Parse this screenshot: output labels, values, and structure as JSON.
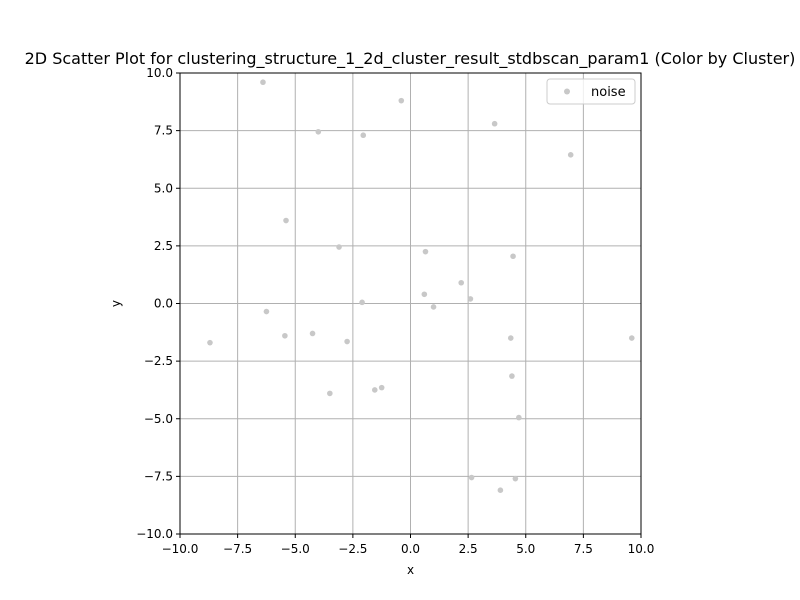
{
  "chart_data": {
    "type": "scatter",
    "title": "2D Scatter Plot for clustering_structure_1_2d_cluster_result_stdbscan_param1 (Color by Cluster)",
    "xlabel": "x",
    "ylabel": "y",
    "xlim": [
      -10,
      10
    ],
    "ylim": [
      -10,
      10
    ],
    "grid": true,
    "legend_position": "top-right",
    "x_ticks": [
      "−10.0",
      "−7.5",
      "−5.0",
      "−2.5",
      "0.0",
      "2.5",
      "5.0",
      "7.5",
      "10.0"
    ],
    "y_ticks": [
      "−10.0",
      "−7.5",
      "−5.0",
      "−2.5",
      "0.0",
      "2.5",
      "5.0",
      "7.5",
      "10.0"
    ],
    "series": [
      {
        "name": "noise",
        "color": "#c8c8c8",
        "points": [
          {
            "x": -6.4,
            "y": 9.6
          },
          {
            "x": -0.4,
            "y": 8.8
          },
          {
            "x": -4.0,
            "y": 7.45
          },
          {
            "x": -2.05,
            "y": 7.3
          },
          {
            "x": 3.65,
            "y": 7.8
          },
          {
            "x": 6.95,
            "y": 6.45
          },
          {
            "x": -5.4,
            "y": 3.6
          },
          {
            "x": -3.1,
            "y": 2.45
          },
          {
            "x": 0.65,
            "y": 2.25
          },
          {
            "x": 4.45,
            "y": 2.05
          },
          {
            "x": 2.2,
            "y": 0.9
          },
          {
            "x": 0.6,
            "y": 0.4
          },
          {
            "x": 2.6,
            "y": 0.2
          },
          {
            "x": -2.1,
            "y": 0.05
          },
          {
            "x": 1.0,
            "y": -0.15
          },
          {
            "x": -6.25,
            "y": -0.35
          },
          {
            "x": -4.25,
            "y": -1.3
          },
          {
            "x": -5.45,
            "y": -1.4
          },
          {
            "x": 4.35,
            "y": -1.5
          },
          {
            "x": 9.6,
            "y": -1.5
          },
          {
            "x": -2.75,
            "y": -1.65
          },
          {
            "x": -8.7,
            "y": -1.7
          },
          {
            "x": 4.4,
            "y": -3.15
          },
          {
            "x": -1.25,
            "y": -3.65
          },
          {
            "x": -1.55,
            "y": -3.75
          },
          {
            "x": -3.5,
            "y": -3.9
          },
          {
            "x": 4.7,
            "y": -4.95
          },
          {
            "x": 2.65,
            "y": -7.55
          },
          {
            "x": 4.55,
            "y": -7.6
          },
          {
            "x": 3.9,
            "y": -8.1
          }
        ]
      }
    ]
  }
}
